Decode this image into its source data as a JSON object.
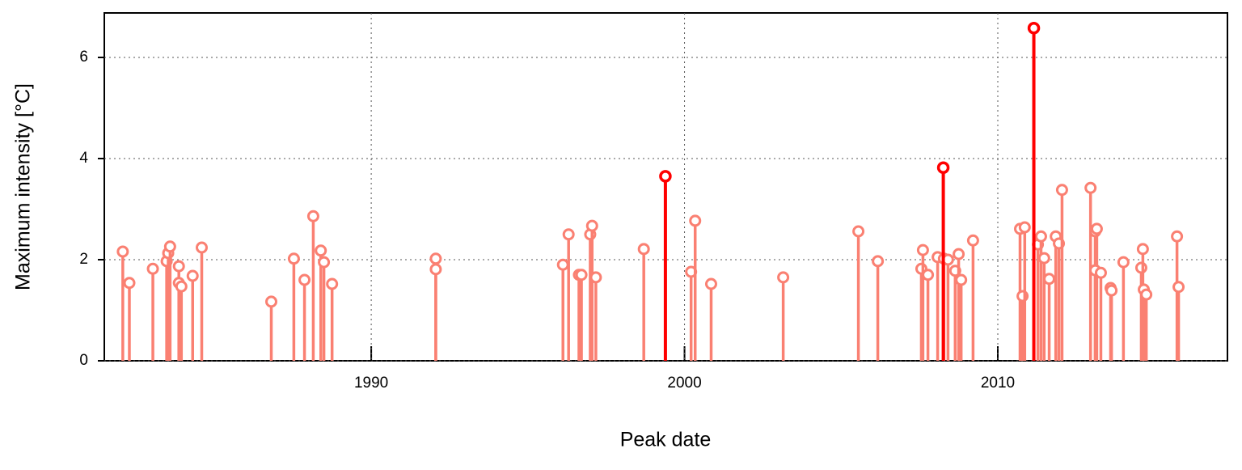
{
  "chart_data": {
    "type": "lollipop",
    "x_label": "Peak date",
    "y_label": "Maximum intensity [°C]",
    "xlim": [
      1981.48,
      2017.33
    ],
    "xticks": [
      1990,
      2000,
      2010
    ],
    "ylim": [
      0,
      6.88
    ],
    "yticks": [
      0,
      2,
      4,
      6
    ],
    "grid": true,
    "series": [
      {
        "color": "#fa8072",
        "x": [
          1982.07,
          1982.28,
          1983.03,
          1983.47,
          1983.52,
          1983.58,
          1983.86,
          1983.86,
          1983.94,
          1984.3,
          1984.59,
          1986.81,
          1987.53,
          1987.87,
          1988.15,
          1988.39,
          1988.49,
          1988.75,
          1992.06,
          1992.06,
          1996.12,
          1996.3,
          1996.63,
          1996.71,
          1996.99,
          1997.05,
          1997.17,
          1998.7,
          2000.21,
          2000.34,
          2000.85,
          2003.15,
          2005.55,
          2006.17,
          2007.56,
          2007.61,
          2007.77,
          2008.08,
          2008.28,
          2008.41,
          2008.64,
          2008.75,
          2008.83,
          2009.21,
          2010.71,
          2010.79,
          2010.86,
          2011.28,
          2011.38,
          2011.48,
          2011.64,
          2011.85,
          2011.95,
          2012.05,
          2012.96,
          2013.11,
          2013.16,
          2013.11,
          2013.29,
          2013.6,
          2013.63,
          2014.01,
          2014.58,
          2014.63,
          2014.66,
          2014.74,
          2015.72,
          2015.77
        ],
        "values": [
          2.16,
          1.54,
          1.82,
          1.97,
          2.13,
          2.26,
          1.87,
          1.54,
          1.47,
          1.68,
          2.24,
          1.17,
          2.02,
          1.6,
          2.86,
          2.18,
          1.95,
          1.52,
          2.02,
          1.81,
          1.9,
          2.5,
          1.7,
          1.7,
          2.5,
          2.67,
          1.65,
          2.21,
          1.76,
          2.77,
          1.52,
          1.65,
          2.56,
          1.97,
          1.82,
          2.19,
          1.7,
          2.05,
          2.02,
          2.0,
          1.78,
          2.11,
          1.6,
          2.38,
          2.61,
          1.28,
          2.64,
          2.3,
          2.46,
          2.03,
          1.62,
          2.46,
          2.32,
          3.38,
          3.42,
          2.56,
          2.61,
          1.79,
          1.74,
          1.44,
          1.39,
          1.95,
          1.84,
          2.21,
          1.41,
          1.31,
          2.46,
          1.46
        ]
      },
      {
        "color": "#ff0000",
        "x": [
          1999.39,
          2008.26,
          2011.15
        ],
        "values": [
          3.65,
          3.82,
          6.58
        ]
      }
    ]
  }
}
